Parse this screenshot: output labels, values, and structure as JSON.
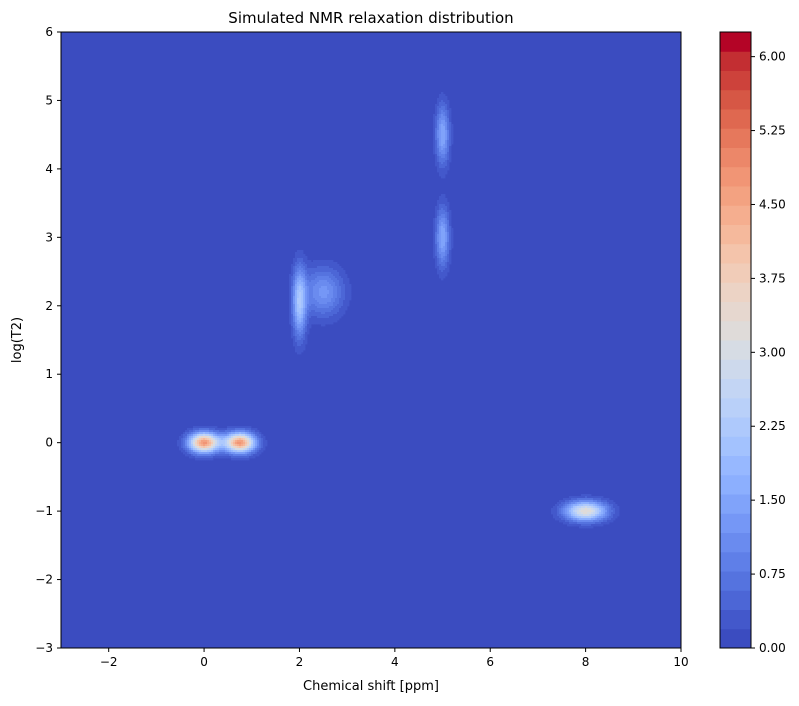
{
  "chart_data": {
    "type": "heatmap",
    "plot_kind": "filled contour",
    "title": "Simulated NMR relaxation distribution",
    "xlabel": "Chemical shift [ppm]",
    "ylabel": "log(T2)",
    "xlim": [
      -3,
      10
    ],
    "ylim": [
      -3,
      6
    ],
    "x_ticks": [
      -2,
      0,
      2,
      4,
      6,
      8,
      10
    ],
    "x_tick_labels": [
      "−2",
      "0",
      "2",
      "4",
      "6",
      "8",
      "10"
    ],
    "y_ticks": [
      -3,
      -2,
      -1,
      0,
      1,
      2,
      3,
      4,
      5,
      6
    ],
    "y_tick_labels": [
      "−3",
      "−2",
      "−1",
      "0",
      "1",
      "2",
      "3",
      "4",
      "5",
      "6"
    ],
    "grid": false,
    "colormap": "coolwarm",
    "colorbar": {
      "position": "right",
      "range": [
        0,
        6.25
      ],
      "level_step": 0.25,
      "tick_values": [
        0,
        0.75,
        1.5,
        2.25,
        3.0,
        3.75,
        4.5,
        5.25,
        6.0
      ],
      "tick_labels": [
        "0.00",
        "0.75",
        "1.50",
        "2.25",
        "3.00",
        "3.75",
        "4.50",
        "5.25",
        "6.00"
      ],
      "colors": [
        "#3b4cc0",
        "#4358cb",
        "#4c66d6",
        "#5573df",
        "#5f7fe8",
        "#6a8bef",
        "#7597f6",
        "#80a3fa",
        "#8caffe",
        "#97b8ff",
        "#a3c2fe",
        "#aec9fc",
        "#b9d0f9",
        "#c3d5f4",
        "#cdd9ec",
        "#d6dce4",
        "#dfdbd9",
        "#e6d7cf",
        "#ecd3c5",
        "#f1ccb8",
        "#f4c4ab",
        "#f5b99c",
        "#f5ae8f",
        "#f3a281",
        "#f19575",
        "#ec8769",
        "#e6785c",
        "#df6850",
        "#d65745",
        "#cd423b",
        "#c32e32",
        "#b40426"
      ]
    },
    "peaks": [
      {
        "center_x": 0.0,
        "center_y": 0.0,
        "amplitude": 6.1,
        "width_x": 0.22,
        "width_y": 0.1
      },
      {
        "center_x": 0.75,
        "center_y": 0.0,
        "amplitude": 6.1,
        "width_x": 0.22,
        "width_y": 0.1
      },
      {
        "center_x": 8.0,
        "center_y": -1.0,
        "amplitude": 4.2,
        "width_x": 0.3,
        "width_y": 0.1
      },
      {
        "center_x": 2.0,
        "center_y": 2.05,
        "amplitude": 2.6,
        "width_x": 0.1,
        "width_y": 0.35
      },
      {
        "center_x": 2.5,
        "center_y": 2.2,
        "amplitude": 1.6,
        "width_x": 0.3,
        "width_y": 0.25
      },
      {
        "center_x": 5.0,
        "center_y": 4.5,
        "amplitude": 2.0,
        "width_x": 0.1,
        "width_y": 0.3
      },
      {
        "center_x": 5.0,
        "center_y": 3.0,
        "amplitude": 2.0,
        "width_x": 0.1,
        "width_y": 0.3
      }
    ]
  }
}
